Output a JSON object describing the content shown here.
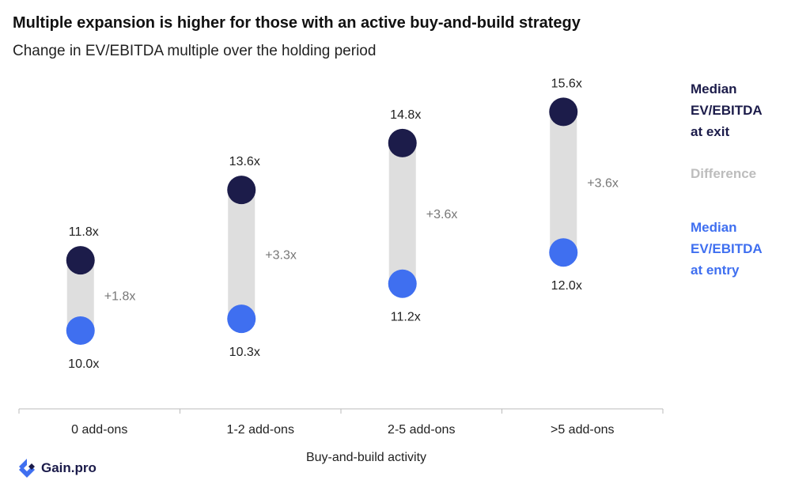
{
  "title": "Multiple expansion is higher for those with an active buy-and-build strategy",
  "subtitle": "Change in EV/EBITDA multiple over the holding period",
  "legend": {
    "exit": "Median\nEV/EBITDA\n at exit",
    "difference": "Difference",
    "entry": "Median\nEV/EBITDA\nat entry"
  },
  "colors": {
    "exit": "#1c1c4a",
    "entry": "#3f6ff0",
    "difference": "#dedede",
    "difference_text": "#bdbdbd",
    "label": "#222222",
    "diff_label": "#777777"
  },
  "brand": {
    "name": "Gain.pro",
    "icon": "gain-pro-logo-icon"
  },
  "chart_data": {
    "type": "dumbbell",
    "categories": [
      "0 add-ons",
      "1-2 add-ons",
      "2-5 add-ons",
      ">5 add-ons"
    ],
    "series": [
      {
        "name": "Median EV/EBITDA at entry",
        "values": [
          10.0,
          10.3,
          11.2,
          12.0
        ]
      },
      {
        "name": "Median EV/EBITDA at exit",
        "values": [
          11.8,
          13.6,
          14.8,
          15.6
        ]
      }
    ],
    "entry_labels": [
      "10.0x",
      "10.3x",
      "11.2x",
      "12.0x"
    ],
    "exit_labels": [
      "11.8x",
      "13.6x",
      "14.8x",
      "15.6x"
    ],
    "difference_labels": [
      "+1.8x",
      "+3.3x",
      "+3.6x",
      "+3.6x"
    ],
    "xlabel": "Buy-and-build activity",
    "ylabel": "",
    "ylim": [
      9,
      16
    ]
  }
}
